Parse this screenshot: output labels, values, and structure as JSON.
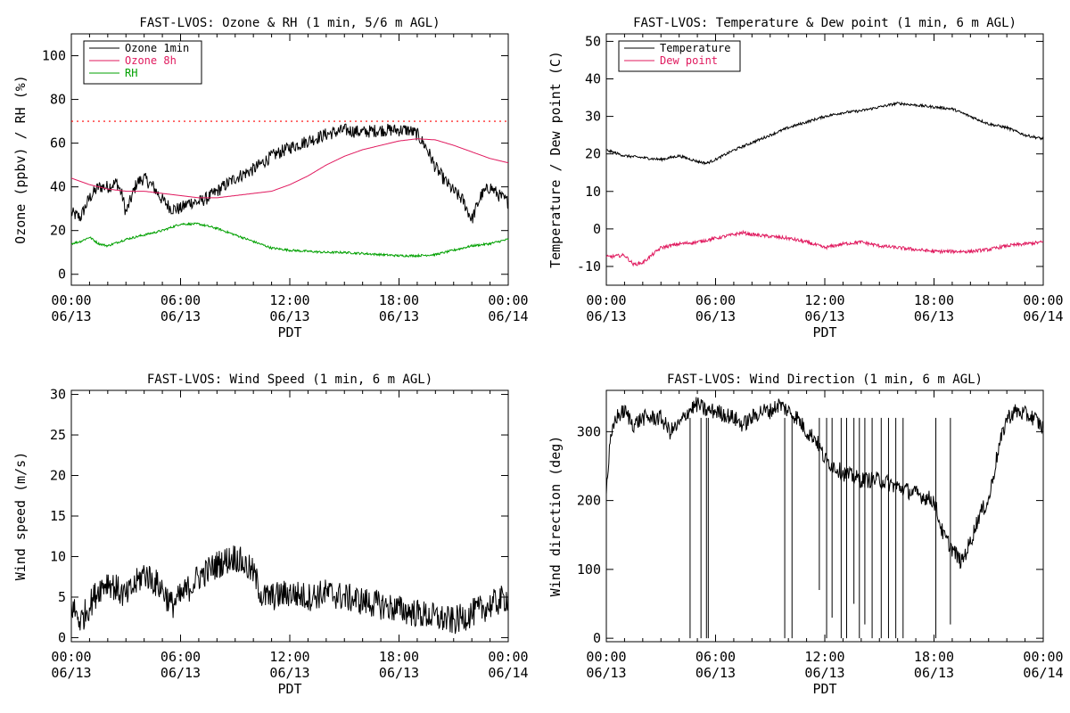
{
  "chart_data": [
    {
      "id": "ozone_rh",
      "type": "line",
      "title": "FAST-LVOS: Ozone & RH (1 min, 5/6 m AGL)",
      "xlabel": "PDT",
      "ylabel": "Ozone (ppbv) / RH (%)",
      "xlim": [
        0,
        24
      ],
      "ylim": [
        -5,
        110
      ],
      "yticks": [
        0,
        20,
        40,
        60,
        80,
        100
      ],
      "xtick_labels": [
        [
          "00:00",
          "06/13"
        ],
        [
          "06:00",
          "06/13"
        ],
        [
          "12:00",
          "06/13"
        ],
        [
          "18:00",
          "06/13"
        ],
        [
          "00:00",
          "06/14"
        ]
      ],
      "reference_line": {
        "y": 70,
        "color": "#ff0000",
        "style": "dotted"
      },
      "legend": {
        "placement": "top-left",
        "entries": [
          "Ozone 1min",
          "Ozone 8h",
          "RH"
        ]
      },
      "series": [
        {
          "name": "Ozone 1min",
          "color": "#000000",
          "noise": 3,
          "x": [
            0,
            0.5,
            1,
            1.5,
            2,
            2.5,
            2.8,
            3,
            3.3,
            3.6,
            4,
            4.5,
            5,
            5.5,
            6,
            6.5,
            7,
            7.5,
            8,
            9,
            10,
            11,
            12,
            13,
            14,
            15,
            16,
            17,
            18,
            18.5,
            19,
            19.5,
            20,
            20.5,
            21,
            21.5,
            22,
            22.5,
            23,
            23.5,
            24
          ],
          "y": [
            28,
            26,
            35,
            40,
            40,
            42,
            36,
            28,
            35,
            42,
            44,
            40,
            34,
            30,
            30,
            33,
            33,
            35,
            38,
            44,
            48,
            54,
            58,
            61,
            64,
            66,
            65,
            66,
            66,
            66,
            64,
            58,
            49,
            43,
            38,
            34,
            25,
            36,
            40,
            36,
            33
          ]
        },
        {
          "name": "Ozone 8h",
          "color": "#e0195e",
          "x": [
            0,
            1,
            2,
            3,
            4,
            5,
            6,
            7,
            8,
            9,
            10,
            11,
            12,
            13,
            14,
            15,
            16,
            17,
            18,
            19,
            20,
            21,
            22,
            23,
            24
          ],
          "y": [
            44,
            41,
            39,
            38,
            38,
            37,
            36,
            35,
            35,
            36,
            37,
            38,
            41,
            45,
            50,
            54,
            57,
            59,
            61,
            62,
            61.5,
            59,
            56,
            53,
            51
          ]
        },
        {
          "name": "RH",
          "color": "#00a000",
          "noise": 0.5,
          "x": [
            0,
            0.5,
            1,
            1.5,
            2,
            3,
            4,
            5,
            6,
            7,
            8,
            9,
            10,
            11,
            12,
            13,
            14,
            15,
            16,
            17,
            18,
            19,
            20,
            21,
            22,
            23,
            24
          ],
          "y": [
            14,
            15,
            17,
            14,
            13,
            16,
            18,
            20,
            23,
            23,
            21,
            18,
            15,
            12,
            11,
            10.5,
            10,
            10,
            9.5,
            9,
            8.5,
            8.5,
            9,
            11,
            13,
            14,
            16
          ]
        }
      ]
    },
    {
      "id": "temp_dew",
      "type": "line",
      "title": "FAST-LVOS: Temperature & Dew point (1 min, 6 m AGL)",
      "xlabel": "PDT",
      "ylabel": "Temperature / Dew point (C)",
      "xlim": [
        0,
        24
      ],
      "ylim": [
        -15,
        52
      ],
      "yticks": [
        -10,
        0,
        10,
        20,
        30,
        40,
        50
      ],
      "xtick_labels": [
        [
          "00:00",
          "06/13"
        ],
        [
          "06:00",
          "06/13"
        ],
        [
          "12:00",
          "06/13"
        ],
        [
          "18:00",
          "06/13"
        ],
        [
          "00:00",
          "06/14"
        ]
      ],
      "legend": {
        "placement": "top-left",
        "entries": [
          "Temperature",
          "Dew point"
        ]
      },
      "series": [
        {
          "name": "Temperature",
          "color": "#000000",
          "noise": 0.35,
          "x": [
            0,
            1,
            2,
            3,
            4,
            5,
            5.5,
            6,
            7,
            8,
            9,
            10,
            11,
            12,
            13,
            14,
            15,
            16,
            17,
            18,
            19,
            20,
            21,
            22,
            23,
            24
          ],
          "y": [
            21,
            19.5,
            19,
            18.5,
            19.5,
            18,
            17.5,
            18.5,
            21,
            23,
            25,
            27,
            28.5,
            30,
            31,
            31.5,
            32.5,
            33.5,
            33,
            32.5,
            32,
            30,
            28,
            27,
            25,
            24
          ]
        },
        {
          "name": "Dew point",
          "color": "#e0195e",
          "noise": 0.45,
          "x": [
            0,
            1,
            1.5,
            2,
            3,
            4,
            5,
            6,
            7,
            7.5,
            8,
            9,
            10,
            11,
            12,
            13,
            14,
            15,
            16,
            17,
            18,
            19,
            20,
            21,
            22,
            23,
            24
          ],
          "y": [
            -7.5,
            -7,
            -9.5,
            -9,
            -5,
            -4,
            -3.5,
            -2.5,
            -1.5,
            -1,
            -1.5,
            -2,
            -2.5,
            -3.5,
            -5,
            -4,
            -3.5,
            -4.5,
            -5,
            -5.5,
            -6,
            -6,
            -6,
            -5.5,
            -4.5,
            -4,
            -3.5
          ]
        }
      ]
    },
    {
      "id": "wind_speed",
      "type": "line",
      "title": "FAST-LVOS: Wind Speed (1 min, 6 m AGL)",
      "xlabel": "PDT",
      "ylabel": "Wind speed (m/s)",
      "xlim": [
        0,
        24
      ],
      "ylim": [
        -0.5,
        30.5
      ],
      "yticks": [
        0,
        5,
        10,
        15,
        20,
        25,
        30
      ],
      "xtick_labels": [
        [
          "00:00",
          "06/13"
        ],
        [
          "06:00",
          "06/13"
        ],
        [
          "12:00",
          "06/13"
        ],
        [
          "18:00",
          "06/13"
        ],
        [
          "00:00",
          "06/14"
        ]
      ],
      "series": [
        {
          "name": "",
          "color": "#000000",
          "noise": 1.8,
          "x": [
            0,
            0.5,
            1,
            1.5,
            2,
            3,
            4,
            5,
            5.5,
            6,
            7,
            8,
            9,
            10,
            10.5,
            11,
            12,
            13,
            14,
            15,
            16,
            17,
            18,
            19,
            20,
            21,
            22,
            23,
            24
          ],
          "y": [
            4,
            2,
            4,
            6,
            7,
            5,
            8,
            6,
            4,
            5,
            7.5,
            9,
            10,
            8,
            5,
            5,
            5.5,
            5,
            5.5,
            5,
            4.5,
            4,
            3.5,
            3,
            2.5,
            2,
            3,
            4,
            5
          ]
        }
      ]
    },
    {
      "id": "wind_dir",
      "type": "line",
      "title": "FAST-LVOS: Wind Direction (1 min, 6 m AGL)",
      "xlabel": "PDT",
      "ylabel": "Wind direction (deg)",
      "xlim": [
        0,
        24
      ],
      "ylim": [
        -5,
        360
      ],
      "yticks": [
        0,
        100,
        200,
        300
      ],
      "xtick_labels": [
        [
          "00:00",
          "06/13"
        ],
        [
          "06:00",
          "06/13"
        ],
        [
          "12:00",
          "06/13"
        ],
        [
          "18:00",
          "06/13"
        ],
        [
          "00:00",
          "06/14"
        ]
      ],
      "series": [
        {
          "name": "",
          "color": "#000000",
          "noise": 12,
          "x": [
            0,
            0.2,
            0.5,
            1,
            1.5,
            2,
            3,
            3.5,
            4,
            4.5,
            5,
            5.5,
            6,
            7,
            7.5,
            8,
            8.5,
            9,
            9.5,
            10,
            10.5,
            11,
            11.5,
            12,
            12.5,
            13,
            14,
            15,
            16,
            17,
            18,
            18.5,
            19,
            19.5,
            20,
            20.5,
            21,
            21.5,
            22,
            22.5,
            23,
            23.5,
            24
          ],
          "y": [
            215,
            280,
            320,
            330,
            310,
            320,
            320,
            300,
            310,
            330,
            340,
            330,
            330,
            320,
            310,
            320,
            330,
            330,
            340,
            330,
            320,
            300,
            290,
            260,
            250,
            240,
            230,
            230,
            220,
            210,
            200,
            150,
            130,
            110,
            140,
            180,
            200,
            270,
            320,
            330,
            325,
            320,
            305
          ]
        },
        {
          "name": "_spikes",
          "color": "#000000",
          "x": [
            4.6,
            5.2,
            5.5,
            5.6,
            9.8,
            10.2,
            11.7,
            12.1,
            12.4,
            12.9,
            13.2,
            13.6,
            13.9,
            14.2,
            14.6,
            15.1,
            15.5,
            15.9,
            16.3,
            18.1,
            18.9
          ],
          "y": [
            0,
            0,
            0,
            0,
            0,
            0,
            70,
            0,
            30,
            0,
            0,
            50,
            0,
            20,
            0,
            0,
            0,
            0,
            0,
            0,
            20
          ]
        }
      ]
    }
  ]
}
